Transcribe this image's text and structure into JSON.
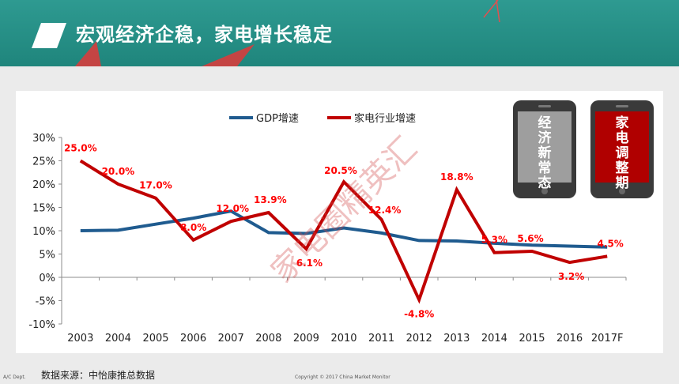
{
  "header": {
    "title": "宏观经济企稳，家电增长稳定"
  },
  "colors": {
    "teal": "#23897f",
    "gdp": "#1f5b8f",
    "appliance": "#c00000",
    "label": "#ff0000",
    "phone_dark": "#3a3a3a",
    "phone_gray": "#9e9e9e",
    "phone_red": "#b00000"
  },
  "chart_data": {
    "type": "line",
    "categories": [
      "2003",
      "2004",
      "2005",
      "2006",
      "2007",
      "2008",
      "2009",
      "2010",
      "2011",
      "2012",
      "2013",
      "2014",
      "2015",
      "2016",
      "2017F"
    ],
    "series": [
      {
        "name": "GDP增速",
        "values": [
          10.0,
          10.1,
          11.4,
          12.7,
          14.2,
          9.6,
          9.4,
          10.6,
          9.5,
          7.9,
          7.8,
          7.3,
          6.9,
          6.7,
          6.5
        ]
      },
      {
        "name": "家电行业增速",
        "values": [
          25.0,
          20.0,
          17.0,
          8.0,
          12.0,
          13.9,
          6.1,
          20.5,
          12.4,
          -4.8,
          18.8,
          5.3,
          5.6,
          3.2,
          4.5
        ]
      }
    ],
    "yticks": [
      "30%",
      "25%",
      "20%",
      "15%",
      "10%",
      "5%",
      "0%",
      "-5%",
      "-10%"
    ],
    "ylim": [
      -10,
      30
    ],
    "data_labels": [
      {
        "i": 0,
        "text": "25.0%"
      },
      {
        "i": 1,
        "text": "20.0%"
      },
      {
        "i": 2,
        "text": "17.0%"
      },
      {
        "i": 3,
        "text": "8.0%"
      },
      {
        "i": 4,
        "text": "12.0%"
      },
      {
        "i": 5,
        "text": "13.9%"
      },
      {
        "i": 6,
        "text": "6.1%"
      },
      {
        "i": 7,
        "text": "20.5%"
      },
      {
        "i": 8,
        "text": "12.4%"
      },
      {
        "i": 9,
        "text": "-4.8%"
      },
      {
        "i": 10,
        "text": "18.8%"
      },
      {
        "i": 11,
        "text": "5.3%"
      },
      {
        "i": 12,
        "text": "5.6%"
      },
      {
        "i": 13,
        "text": "3.2%"
      },
      {
        "i": 14,
        "text": "4.5%"
      }
    ],
    "legend": "top-center",
    "grid": false
  },
  "phones": {
    "left_text": "经济新常态",
    "right_text": "家电调整期"
  },
  "watermark": "家电圈精英汇",
  "footer": {
    "dept": "A/C Dept.",
    "source": "数据来源：中怡康推总数据",
    "copyright": "Copyright © 2017 China Market Monitor"
  }
}
